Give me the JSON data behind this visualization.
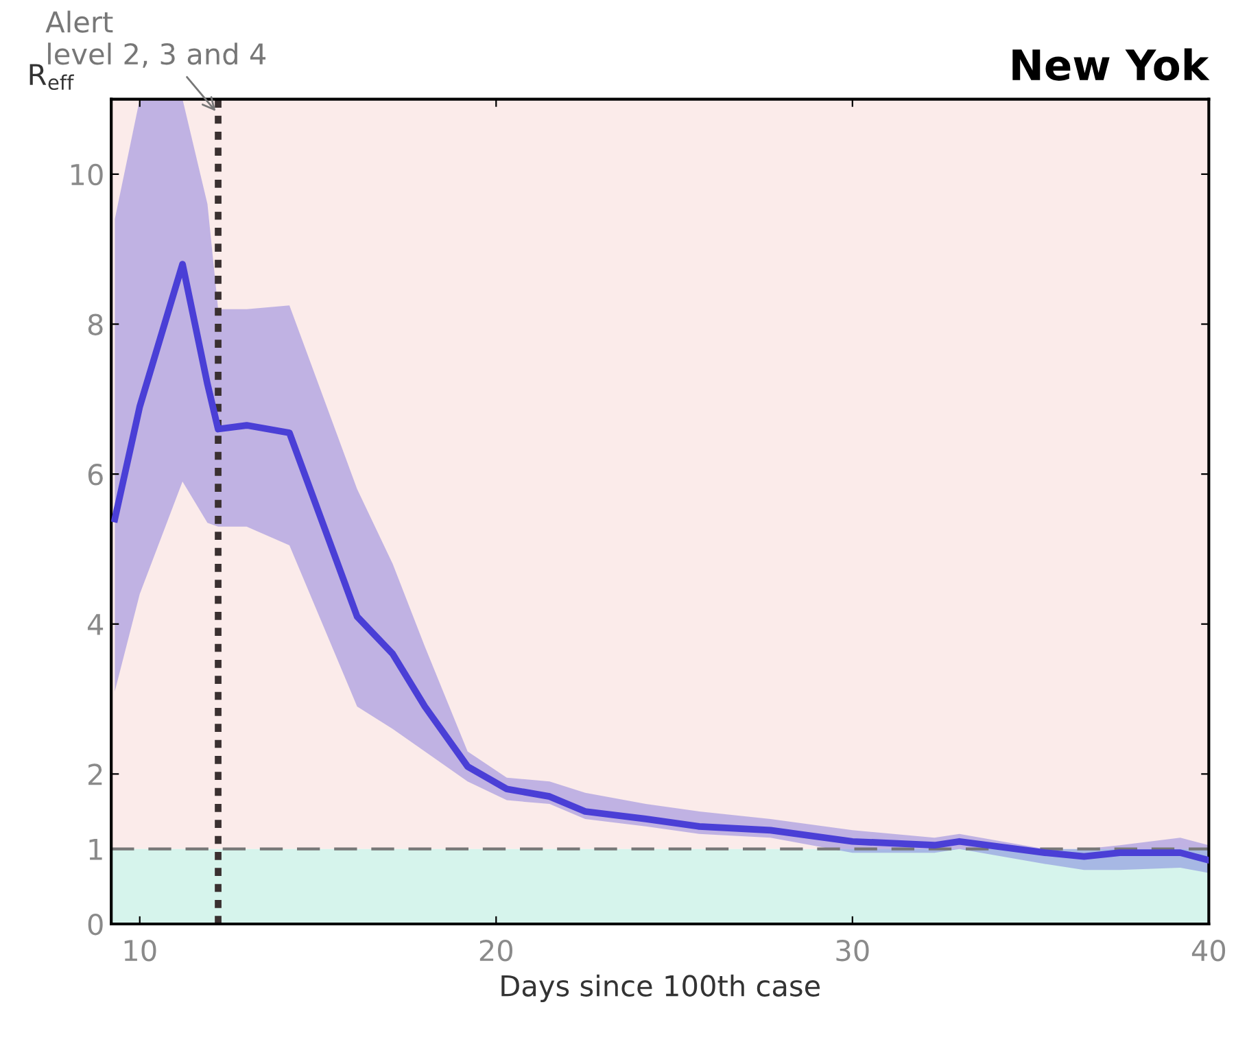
{
  "chart_data": {
    "type": "line",
    "title": "New Yok",
    "xlabel": "Days since 100th case",
    "ylabel": "R$_{eff}$",
    "x": [
      9.3,
      10,
      11.2,
      11.9,
      12.2,
      13,
      14.2,
      16.1,
      17.1,
      18,
      19.2,
      20.3,
      21.5,
      22.5,
      24.2,
      25.7,
      27.7,
      30,
      32.3,
      33,
      35.4,
      36.5,
      37.5,
      39.2,
      40
    ],
    "series": [
      {
        "color": "#4a3fd6",
        "values": [
          5.4,
          6.9,
          8.8,
          7.2,
          6.6,
          6.65,
          6.55,
          4.1,
          3.6,
          2.9,
          2.1,
          1.8,
          1.7,
          1.5,
          1.4,
          1.3,
          1.25,
          1.1,
          1.05,
          1.1,
          0.95,
          0.9,
          0.95,
          0.95,
          0.85
        ],
        "upper": [
          9.4,
          11,
          11,
          9.6,
          8.2,
          8.2,
          8.25,
          5.8,
          4.8,
          3.7,
          2.3,
          1.95,
          1.9,
          1.75,
          1.6,
          1.5,
          1.4,
          1.25,
          1.15,
          1.2,
          1.0,
          1.0,
          1.05,
          1.15,
          1.05
        ],
        "lower": [
          3.1,
          4.4,
          5.9,
          5.35,
          5.3,
          5.3,
          5.05,
          2.9,
          2.6,
          2.3,
          1.9,
          1.65,
          1.6,
          1.4,
          1.3,
          1.2,
          1.15,
          0.95,
          0.95,
          1.0,
          0.8,
          0.72,
          0.72,
          0.75,
          0.68
        ]
      }
    ],
    "xlim": [
      9.2,
      40
    ],
    "ylim": [
      0,
      11
    ],
    "xticks": [
      10,
      20,
      30,
      40
    ],
    "yticks": [
      0,
      1,
      2,
      4,
      6,
      8,
      10
    ],
    "bands": [
      {
        "axis": "y",
        "from": 1,
        "to": 11,
        "color": "#fbebea"
      },
      {
        "axis": "y",
        "from": 0,
        "to": 1,
        "color": "#d6f4ec"
      }
    ],
    "ref_lines": [
      {
        "axis": "y",
        "value": 1,
        "color": "#777777",
        "line_style": "dashed"
      },
      {
        "axis": "x",
        "value": 12.2,
        "color": "#3a3030",
        "line_style": "dotted"
      }
    ],
    "annotations": [
      {
        "text": "Alert\nlevel 2, 3 and 4",
        "x": 12.2,
        "y": 10.8
      }
    ],
    "grid": false,
    "legend": false,
    "line_style": "solid",
    "marker": "none"
  }
}
